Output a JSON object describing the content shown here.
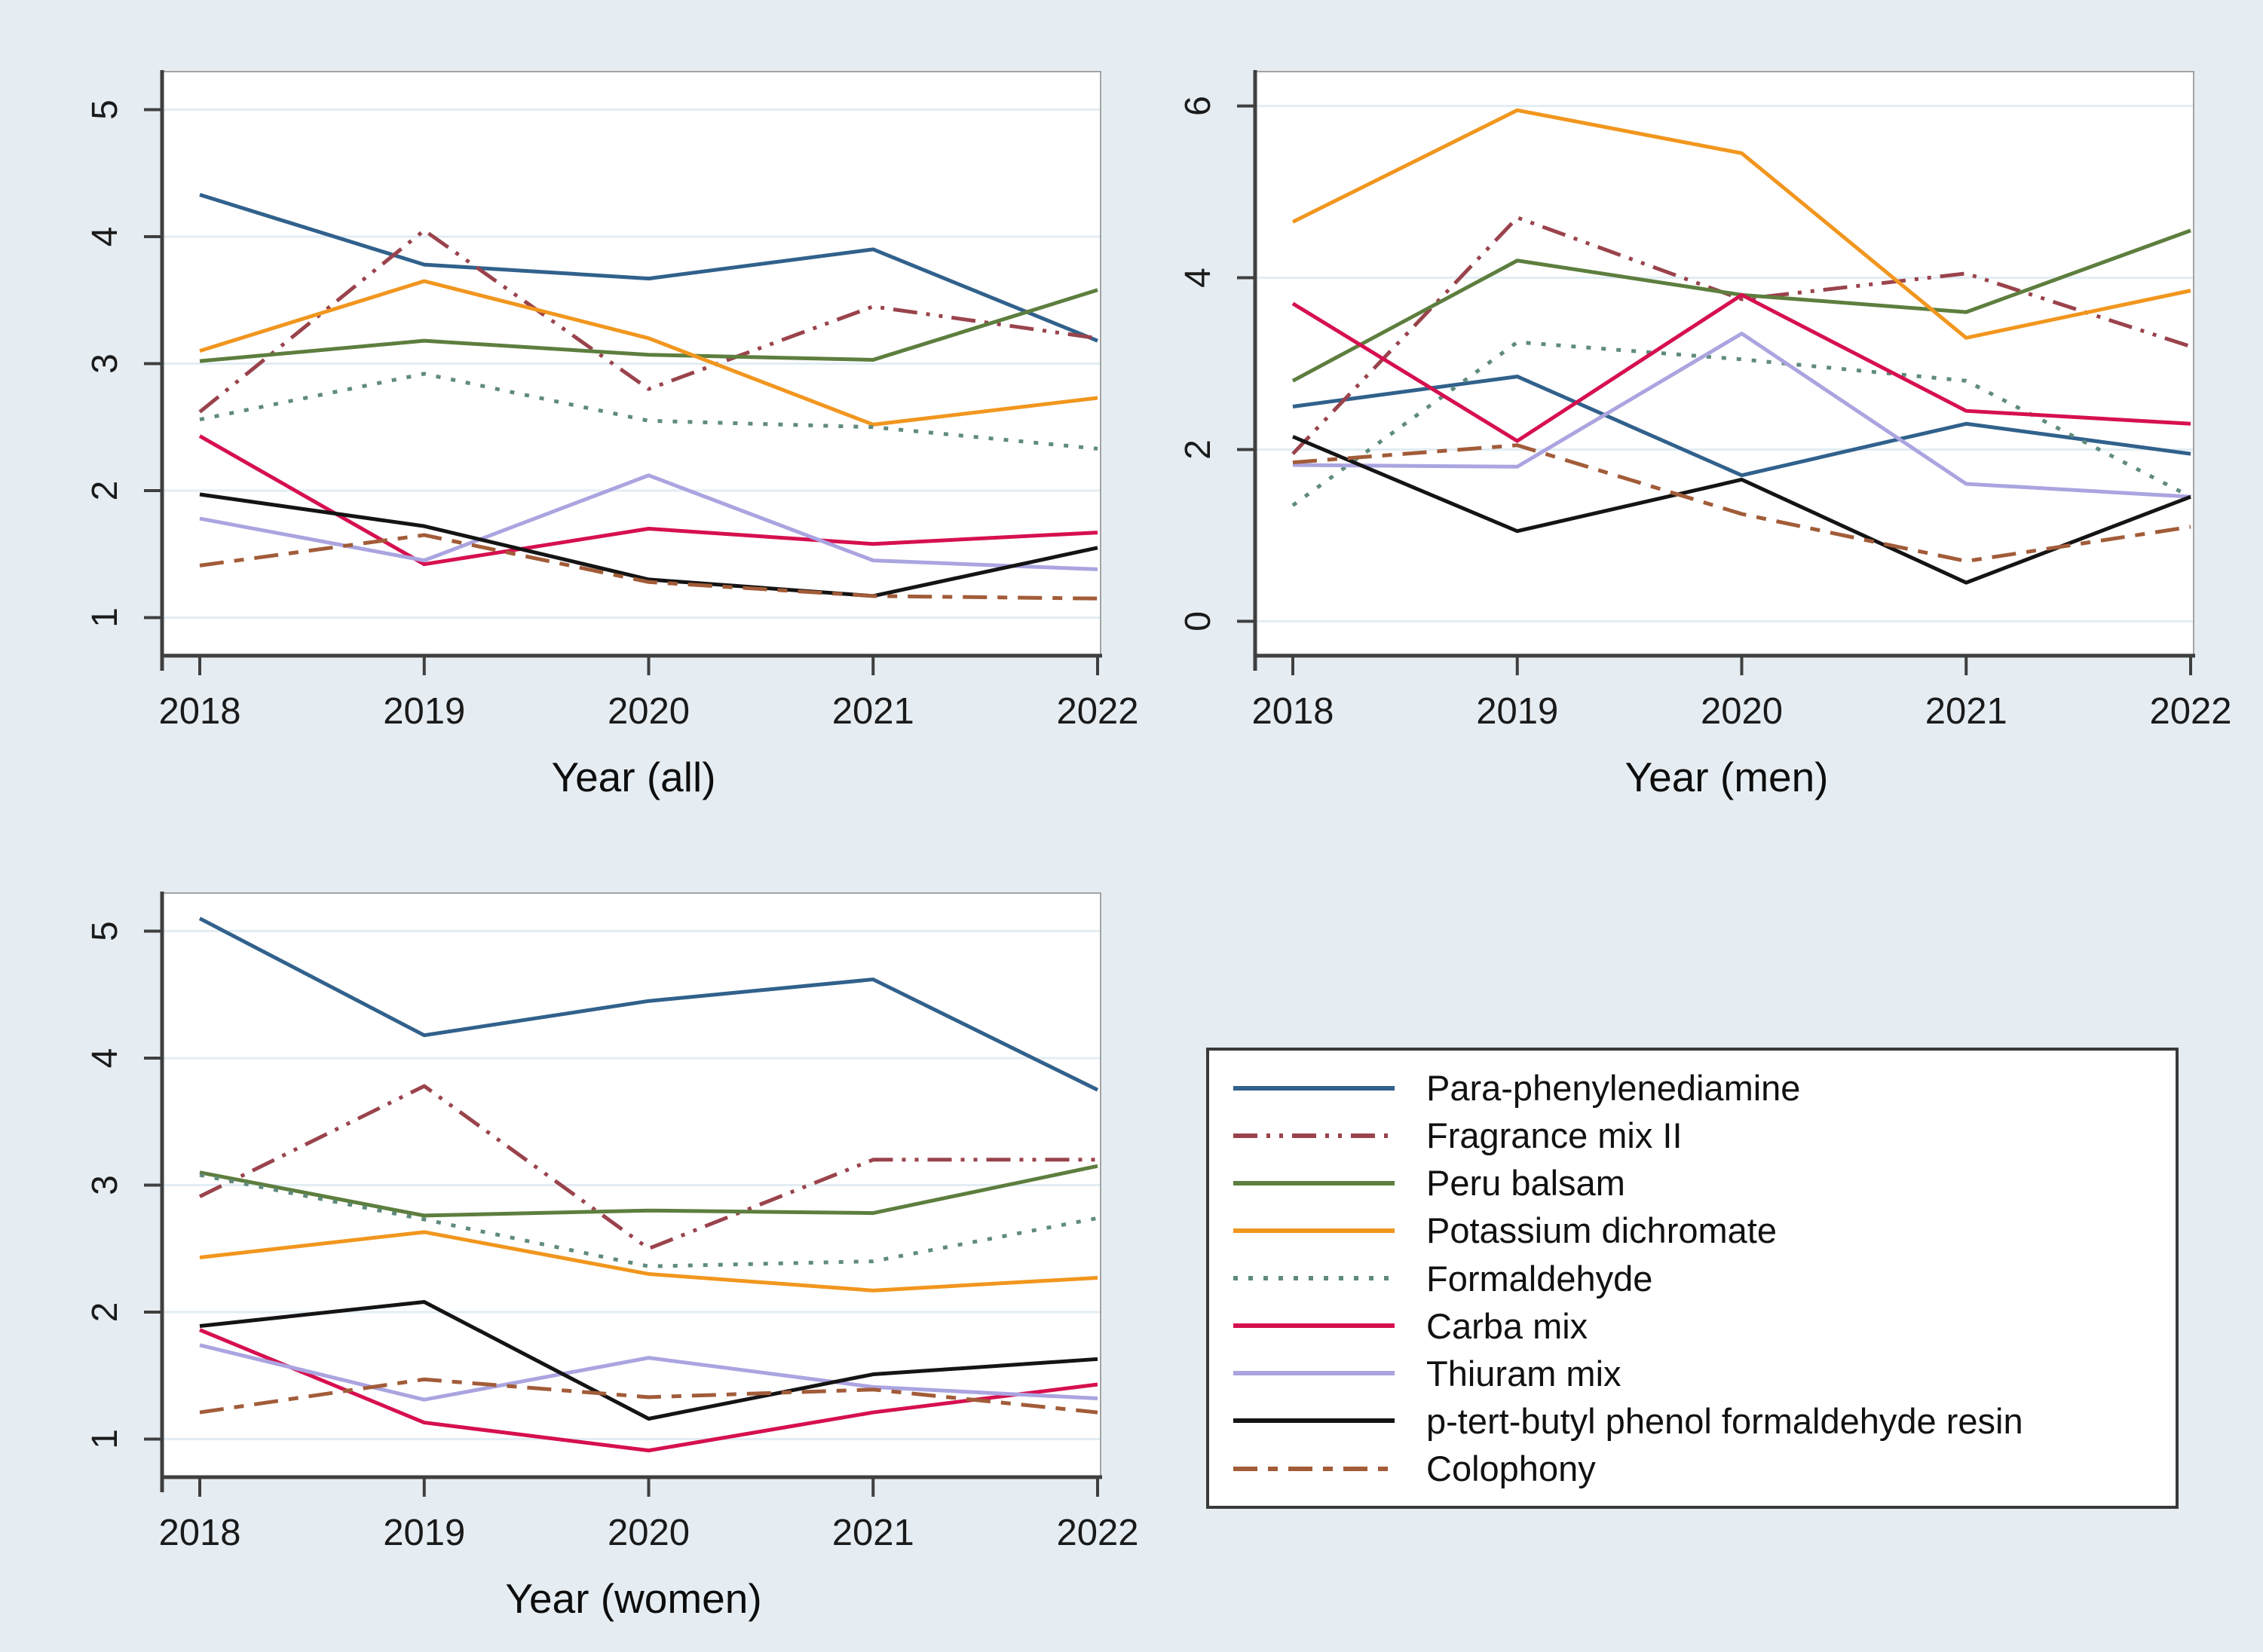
{
  "figure": {
    "background": "#e6edf2",
    "plot_background": "#ffffff",
    "grid_color": "#e2edf4",
    "axis_color": "#3f3f3f",
    "border_color": "#a3a3a3",
    "tick_text_color": "#1a1a1a"
  },
  "legend": {
    "entries": [
      {
        "label": "Para-phenylenediamine",
        "color": "#31618c",
        "dash": "solid"
      },
      {
        "label": "Fragrance mix II",
        "color": "#9a434c",
        "dash": "dash-dot-dot"
      },
      {
        "label": "Peru balsam",
        "color": "#5d7e3e",
        "dash": "solid"
      },
      {
        "label": "Potassium dichromate",
        "color": "#f1961e",
        "dash": "solid"
      },
      {
        "label": "Formaldehyde",
        "color": "#5f8b7d",
        "dash": "dotted"
      },
      {
        "label": "Carba mix",
        "color": "#d6104f",
        "dash": "solid"
      },
      {
        "label": "Thiuram mix",
        "color": "#aaa4e0",
        "dash": "solid"
      },
      {
        "label": "p-tert-butyl phenol formaldehyde resin",
        "color": "#141414",
        "dash": "solid"
      },
      {
        "label": "Colophony",
        "color": "#a25c38",
        "dash": "long-short-dash"
      }
    ]
  },
  "chart_data": [
    {
      "type": "line",
      "xlabel": "Year (all)",
      "x": [
        2018,
        2019,
        2020,
        2021,
        2022
      ],
      "ylim": [
        0.7,
        5.3
      ],
      "yticks": [
        1,
        2,
        3,
        4,
        5
      ],
      "grid": true,
      "series": [
        {
          "name": "Para-phenylenediamine",
          "values": [
            4.33,
            3.78,
            3.67,
            3.9,
            3.18
          ]
        },
        {
          "name": "Fragrance mix II",
          "values": [
            2.62,
            4.05,
            2.8,
            3.45,
            3.2
          ]
        },
        {
          "name": "Peru balsam",
          "values": [
            3.02,
            3.18,
            3.07,
            3.03,
            3.58
          ]
        },
        {
          "name": "Potassium dichromate",
          "values": [
            3.1,
            3.65,
            3.2,
            2.52,
            2.73
          ]
        },
        {
          "name": "Formaldehyde",
          "values": [
            2.56,
            2.92,
            2.55,
            2.5,
            2.33
          ]
        },
        {
          "name": "Carba mix",
          "values": [
            2.43,
            1.42,
            1.7,
            1.58,
            1.67
          ]
        },
        {
          "name": "Thiuram mix",
          "values": [
            1.78,
            1.45,
            2.12,
            1.45,
            1.38
          ]
        },
        {
          "name": "p-tert-butyl phenol formaldehyde resin",
          "values": [
            1.97,
            1.72,
            1.3,
            1.17,
            1.55
          ]
        },
        {
          "name": "Colophony",
          "values": [
            1.41,
            1.65,
            1.28,
            1.17,
            1.15
          ]
        }
      ]
    },
    {
      "type": "line",
      "xlabel": "Year (men)",
      "x": [
        2018,
        2019,
        2020,
        2021,
        2022
      ],
      "ylim": [
        -0.4,
        6.4
      ],
      "yticks": [
        0,
        2,
        4,
        6
      ],
      "grid": true,
      "series": [
        {
          "name": "Para-phenylenediamine",
          "values": [
            2.5,
            2.85,
            1.7,
            2.3,
            1.95
          ]
        },
        {
          "name": "Fragrance mix II",
          "values": [
            1.95,
            4.7,
            3.75,
            4.05,
            3.2
          ]
        },
        {
          "name": "Peru balsam",
          "values": [
            2.8,
            4.2,
            3.8,
            3.6,
            4.55
          ]
        },
        {
          "name": "Potassium dichromate",
          "values": [
            4.65,
            5.95,
            5.45,
            3.3,
            3.85
          ]
        },
        {
          "name": "Formaldehyde",
          "values": [
            1.35,
            3.25,
            3.05,
            2.8,
            1.45
          ]
        },
        {
          "name": "Carba mix",
          "values": [
            3.7,
            2.1,
            3.8,
            2.45,
            2.3
          ]
        },
        {
          "name": "Thiuram mix",
          "values": [
            1.82,
            1.8,
            3.35,
            1.6,
            1.45
          ]
        },
        {
          "name": "p-tert-butyl phenol formaldehyde resin",
          "values": [
            2.15,
            1.05,
            1.65,
            0.45,
            1.45
          ]
        },
        {
          "name": "Colophony",
          "values": [
            1.85,
            2.05,
            1.25,
            0.7,
            1.1
          ]
        }
      ]
    },
    {
      "type": "line",
      "xlabel": "Year (women)",
      "x": [
        2018,
        2019,
        2020,
        2021,
        2022
      ],
      "ylim": [
        0.7,
        5.3
      ],
      "yticks": [
        1,
        2,
        3,
        4,
        5
      ],
      "grid": true,
      "series": [
        {
          "name": "Para-phenylenediamine",
          "values": [
            5.1,
            4.18,
            4.45,
            4.62,
            3.75
          ]
        },
        {
          "name": "Fragrance mix II",
          "values": [
            2.91,
            3.78,
            2.5,
            3.2,
            3.2
          ]
        },
        {
          "name": "Peru balsam",
          "values": [
            3.1,
            2.76,
            2.8,
            2.78,
            3.15
          ]
        },
        {
          "name": "Potassium dichromate",
          "values": [
            2.43,
            2.63,
            2.3,
            2.17,
            2.27
          ]
        },
        {
          "name": "Formaldehyde",
          "values": [
            3.08,
            2.73,
            2.36,
            2.4,
            2.74
          ]
        },
        {
          "name": "Carba mix",
          "values": [
            1.86,
            1.13,
            0.91,
            1.21,
            1.43
          ]
        },
        {
          "name": "Thiuram mix",
          "values": [
            1.74,
            1.31,
            1.64,
            1.41,
            1.32
          ]
        },
        {
          "name": "p-tert-butyl phenol formaldehyde resin",
          "values": [
            1.89,
            2.08,
            1.16,
            1.51,
            1.63
          ]
        },
        {
          "name": "Colophony",
          "values": [
            1.21,
            1.47,
            1.33,
            1.39,
            1.21
          ]
        }
      ]
    }
  ]
}
